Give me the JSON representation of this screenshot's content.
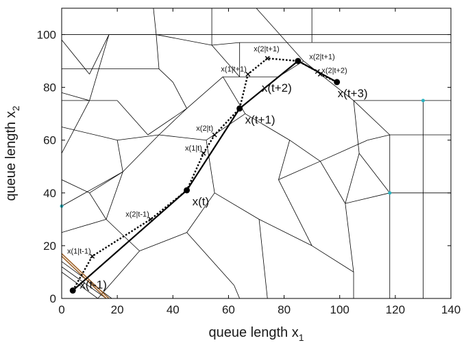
{
  "chart_data": {
    "type": "line",
    "xlabel_main": "queue length x",
    "xlabel_sub": "1",
    "ylabel_main": "queue length x",
    "ylabel_sub": "2",
    "xlim": [
      0,
      140
    ],
    "ylim": [
      0,
      110
    ],
    "x_ticks": [
      0,
      20,
      40,
      60,
      80,
      100,
      120,
      140
    ],
    "y_ticks": [
      0,
      20,
      40,
      60,
      80,
      100
    ],
    "x_tick_labels": [
      "0",
      "20",
      "40",
      "60",
      "80",
      "100",
      "120",
      "140"
    ],
    "y_tick_labels": [
      "0",
      "20",
      "40",
      "60",
      "80",
      "100"
    ],
    "grid": false,
    "series": [
      {
        "style": "solid",
        "points": [
          {
            "x": 4,
            "y": 3,
            "label": "x(t-1)"
          },
          {
            "x": 45,
            "y": 41,
            "label": "x(t)"
          },
          {
            "x": 64,
            "y": 72,
            "label": "x(t+1)"
          },
          {
            "x": 85,
            "y": 90,
            "label": "x(t+2)"
          },
          {
            "x": 99,
            "y": 82,
            "label": "x(t+3)"
          }
        ]
      },
      {
        "style": "dotted",
        "points": [
          {
            "x": 4,
            "y": 3,
            "label": ""
          },
          {
            "x": 11,
            "y": 16,
            "label": "x(1|t-1)"
          },
          {
            "x": 32,
            "y": 30,
            "label": "x(2|t-1)"
          },
          {
            "x": 45,
            "y": 41,
            "label": ""
          },
          {
            "x": 51,
            "y": 55,
            "label": "x(1|t)"
          },
          {
            "x": 55,
            "y": 62,
            "label": "x(2|t)"
          },
          {
            "x": 64,
            "y": 72,
            "label": ""
          },
          {
            "x": 67,
            "y": 85,
            "label": "x(1|t+1)"
          },
          {
            "x": 74,
            "y": 91,
            "label": "x(2|t+1)"
          },
          {
            "x": 85,
            "y": 90,
            "label": ""
          },
          {
            "x": 92,
            "y": 86,
            "label": "x(2|t+1)"
          },
          {
            "x": 93,
            "y": 85,
            "label": "x(2|t+2)"
          },
          {
            "x": 99,
            "y": 82,
            "label": ""
          }
        ]
      }
    ],
    "partition_segments": [
      [
        [
          0,
          55
        ],
        [
          10,
          75
        ]
      ],
      [
        [
          10,
          75
        ],
        [
          17,
          100
        ]
      ],
      [
        [
          0,
          75
        ],
        [
          10,
          75
        ]
      ],
      [
        [
          0,
          98
        ],
        [
          10,
          85
        ]
      ],
      [
        [
          10,
          85
        ],
        [
          17,
          100
        ]
      ],
      [
        [
          0,
          78
        ],
        [
          10,
          75
        ]
      ],
      [
        [
          17,
          100
        ],
        [
          34,
          100
        ]
      ],
      [
        [
          34,
          100
        ],
        [
          54,
          96
        ]
      ],
      [
        [
          54,
          96
        ],
        [
          64,
          84
        ]
      ],
      [
        [
          64,
          84
        ],
        [
          78,
          84
        ]
      ],
      [
        [
          40,
          82
        ],
        [
          35,
          87
        ]
      ],
      [
        [
          35,
          87
        ],
        [
          0,
          87
        ]
      ],
      [
        [
          35,
          87
        ],
        [
          34,
          100
        ]
      ],
      [
        [
          34,
          100
        ],
        [
          33,
          110
        ]
      ],
      [
        [
          54,
          96
        ],
        [
          54,
          110
        ]
      ],
      [
        [
          64,
          84
        ],
        [
          64,
          97
        ]
      ],
      [
        [
          64,
          97
        ],
        [
          54,
          96
        ]
      ],
      [
        [
          64,
          97
        ],
        [
          90,
          97
        ]
      ],
      [
        [
          90,
          97
        ],
        [
          90,
          110
        ]
      ],
      [
        [
          90,
          97
        ],
        [
          140,
          97
        ]
      ],
      [
        [
          0,
          100
        ],
        [
          140,
          100
        ]
      ],
      [
        [
          78,
          84
        ],
        [
          87,
          90
        ]
      ],
      [
        [
          87,
          90
        ],
        [
          105,
          75
        ]
      ],
      [
        [
          105,
          75
        ],
        [
          140,
          75
        ]
      ],
      [
        [
          105,
          75
        ],
        [
          118,
          62
        ]
      ],
      [
        [
          118,
          62
        ],
        [
          118,
          0
        ]
      ],
      [
        [
          118,
          62
        ],
        [
          140,
          62
        ]
      ],
      [
        [
          130,
          75
        ],
        [
          130,
          0
        ]
      ],
      [
        [
          105,
          75
        ],
        [
          107,
          55
        ]
      ],
      [
        [
          107,
          55
        ],
        [
          118,
          40
        ]
      ],
      [
        [
          118,
          40
        ],
        [
          140,
          40
        ]
      ],
      [
        [
          107,
          55
        ],
        [
          102,
          36
        ]
      ],
      [
        [
          102,
          36
        ],
        [
          105,
          10
        ]
      ],
      [
        [
          105,
          10
        ],
        [
          105,
          0
        ]
      ],
      [
        [
          102,
          36
        ],
        [
          118,
          40
        ]
      ],
      [
        [
          40,
          82
        ],
        [
          45,
          72
        ]
      ],
      [
        [
          45,
          72
        ],
        [
          35,
          62
        ]
      ],
      [
        [
          35,
          62
        ],
        [
          22,
          48
        ]
      ],
      [
        [
          22,
          48
        ],
        [
          0,
          35
        ]
      ],
      [
        [
          35,
          62
        ],
        [
          52,
          60
        ]
      ],
      [
        [
          52,
          60
        ],
        [
          66,
          70
        ]
      ],
      [
        [
          66,
          70
        ],
        [
          82,
          60
        ]
      ],
      [
        [
          82,
          60
        ],
        [
          93,
          52
        ]
      ],
      [
        [
          93,
          52
        ],
        [
          102,
          36
        ]
      ],
      [
        [
          52,
          60
        ],
        [
          55,
          40
        ]
      ],
      [
        [
          55,
          40
        ],
        [
          71,
          30
        ]
      ],
      [
        [
          71,
          30
        ],
        [
          90,
          20
        ]
      ],
      [
        [
          90,
          20
        ],
        [
          105,
          10
        ]
      ],
      [
        [
          55,
          40
        ],
        [
          45,
          25
        ]
      ],
      [
        [
          45,
          25
        ],
        [
          28,
          18
        ]
      ],
      [
        [
          28,
          18
        ],
        [
          13,
          0
        ]
      ],
      [
        [
          45,
          25
        ],
        [
          62,
          5
        ]
      ],
      [
        [
          62,
          5
        ],
        [
          64,
          0
        ]
      ],
      [
        [
          71,
          30
        ],
        [
          74,
          0
        ]
      ],
      [
        [
          82,
          60
        ],
        [
          78,
          45
        ]
      ],
      [
        [
          78,
          45
        ],
        [
          93,
          52
        ]
      ],
      [
        [
          78,
          45
        ],
        [
          90,
          20
        ]
      ],
      [
        [
          22,
          48
        ],
        [
          16,
          30
        ]
      ],
      [
        [
          16,
          30
        ],
        [
          0,
          25
        ]
      ],
      [
        [
          16,
          30
        ],
        [
          28,
          18
        ]
      ],
      [
        [
          20,
          75
        ],
        [
          31,
          62
        ]
      ],
      [
        [
          31,
          62
        ],
        [
          45,
          72
        ]
      ],
      [
        [
          20,
          75
        ],
        [
          10,
          75
        ]
      ],
      [
        [
          0,
          65
        ],
        [
          20,
          60
        ]
      ],
      [
        [
          20,
          60
        ],
        [
          35,
          62
        ]
      ],
      [
        [
          20,
          60
        ],
        [
          22,
          48
        ]
      ],
      [
        [
          58,
          84
        ],
        [
          66,
          70
        ]
      ],
      [
        [
          45,
          72
        ],
        [
          58,
          84
        ]
      ],
      [
        [
          58,
          84
        ],
        [
          64,
          84
        ]
      ],
      [
        [
          93,
          52
        ],
        [
          110,
          60
        ]
      ],
      [
        [
          110,
          60
        ],
        [
          118,
          62
        ]
      ],
      [
        [
          0,
          45
        ],
        [
          10,
          40
        ]
      ],
      [
        [
          10,
          40
        ],
        [
          22,
          48
        ]
      ],
      [
        [
          10,
          40
        ],
        [
          16,
          30
        ]
      ],
      [
        [
          0,
          10
        ],
        [
          13,
          0
        ]
      ],
      [
        [
          0,
          12
        ],
        [
          16,
          0
        ]
      ],
      [
        [
          0,
          14
        ],
        [
          18,
          0
        ]
      ],
      [
        [
          70,
          110
        ],
        [
          87,
          90
        ]
      ],
      [
        [
          0,
          110
        ],
        [
          0,
          0
        ]
      ]
    ],
    "brown_segments": [
      [
        [
          0,
          17
        ],
        [
          17,
          0
        ]
      ],
      [
        [
          0,
          16
        ],
        [
          16,
          0
        ]
      ]
    ],
    "cyan_markers": [
      {
        "x": 130,
        "y": 75
      },
      {
        "x": 118,
        "y": 40
      },
      {
        "x": 0,
        "y": 35
      }
    ]
  }
}
